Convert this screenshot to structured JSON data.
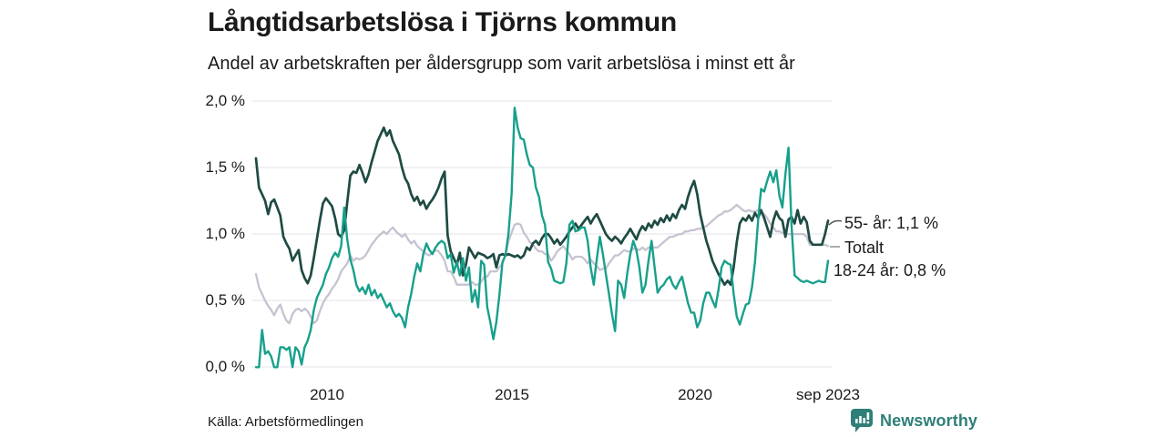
{
  "header": {
    "title": "Långtidsarbetslösa i Tjörns kommun",
    "subtitle": "Andel av arbetskraften per åldersgrupp som varit arbetslösa i minst ett år"
  },
  "footer": {
    "source": "Källa: Arbetsförmedlingen",
    "logo_text": "Newsworthy"
  },
  "colors": {
    "series_55": "#1e4b43",
    "series_total": "#c6c3d1",
    "series_18_24": "#17a08b",
    "grid": "#e3e2e8",
    "logo": "#2f7f78",
    "text": "#1a1a1a"
  },
  "chart_data": {
    "type": "line",
    "title": "Långtidsarbetslösa i Tjörns kommun",
    "subtitle": "Andel av arbetskraften per åldersgrupp som varit arbetslösa i minst ett år",
    "source": "Källa: Arbetsförmedlingen",
    "unit": "% av arbetskraften",
    "x_unit": "month",
    "x_start": "2008-01",
    "x_end": "2023-09",
    "ylim": [
      0,
      2
    ],
    "grid": "horizontal",
    "legend_position": "right-of-line-ends",
    "y_ticks": [
      "0,0 %",
      "0,5 %",
      "1,0 %",
      "1,5 %",
      "2,0 %"
    ],
    "x_ticks": [
      {
        "label": "2010",
        "x": "2010-01"
      },
      {
        "label": "2015",
        "x": "2015-01"
      },
      {
        "label": "2020",
        "x": "2020-01"
      },
      {
        "label": "sep 2023",
        "x": "2023-09"
      }
    ],
    "series": [
      {
        "name": "Totalt",
        "legend": "Totalt",
        "color": "#c6c3d1",
        "values": [
          0.7,
          0.6,
          0.55,
          0.5,
          0.46,
          0.43,
          0.39,
          0.44,
          0.47,
          0.4,
          0.35,
          0.33,
          0.4,
          0.43,
          0.44,
          0.42,
          0.44,
          0.42,
          0.38,
          0.33,
          0.35,
          0.42,
          0.48,
          0.52,
          0.55,
          0.59,
          0.62,
          0.66,
          0.72,
          0.75,
          0.78,
          0.84,
          0.8,
          0.82,
          0.81,
          0.82,
          0.84,
          0.88,
          0.92,
          0.95,
          0.98,
          1.0,
          1.02,
          1.0,
          1.03,
          1.05,
          1.02,
          1.0,
          0.98,
          1.0,
          0.96,
          0.93,
          0.95,
          0.91,
          0.89,
          0.87,
          0.85,
          0.84,
          0.86,
          0.88,
          0.87,
          0.84,
          0.8,
          0.72,
          0.72,
          0.68,
          0.62,
          0.62,
          0.62,
          0.62,
          0.62,
          0.64,
          0.62,
          0.62,
          0.64,
          0.68,
          0.68,
          0.72,
          0.72,
          0.72,
          0.75,
          0.78,
          0.84,
          0.95,
          1.01,
          1.07,
          1.08,
          1.07,
          1.01,
          0.98,
          0.94,
          0.92,
          0.89,
          0.87,
          0.87,
          0.85,
          0.85,
          0.8,
          0.83,
          0.87,
          0.89,
          0.91,
          0.88,
          0.85,
          0.81,
          0.83,
          0.83,
          0.83,
          0.81,
          0.78,
          0.81,
          0.78,
          0.76,
          0.73,
          0.74,
          0.74,
          0.78,
          0.81,
          0.84,
          0.84,
          0.86,
          0.88,
          0.87,
          0.87,
          0.89,
          0.89,
          0.88,
          0.9,
          0.88,
          0.9,
          0.9,
          0.9,
          0.9,
          0.92,
          0.94,
          0.96,
          0.98,
          0.98,
          0.99,
          1.0,
          1.0,
          1.02,
          1.02,
          1.03,
          1.03,
          1.04,
          1.04,
          1.05,
          1.06,
          1.08,
          1.1,
          1.12,
          1.14,
          1.15,
          1.17,
          1.17,
          1.18,
          1.2,
          1.22,
          1.2,
          1.18,
          1.17,
          1.18,
          1.17,
          1.17,
          1.18,
          1.17,
          1.15,
          1.12,
          1.08,
          1.05,
          1.02,
          1.02,
          1.01,
          1.0,
          1.0,
          1.0,
          1.0,
          1.0,
          1.0,
          1.0,
          0.98,
          0.92,
          0.92,
          0.92,
          0.92,
          0.92,
          0.92,
          0.91
        ]
      },
      {
        "name": "55- år",
        "legend": "55- år: 1,1 %",
        "last_value": 1.1,
        "color": "#1e4b43",
        "values": [
          1.57,
          1.35,
          1.3,
          1.25,
          1.15,
          1.24,
          1.26,
          1.2,
          1.14,
          0.98,
          0.93,
          0.89,
          0.8,
          0.84,
          0.88,
          0.73,
          0.67,
          0.63,
          0.69,
          0.82,
          0.96,
          1.1,
          1.23,
          1.27,
          1.24,
          1.21,
          1.12,
          1.0,
          0.98,
          1.03,
          1.24,
          1.44,
          1.47,
          1.46,
          1.52,
          1.46,
          1.39,
          1.45,
          1.54,
          1.62,
          1.7,
          1.75,
          1.8,
          1.74,
          1.78,
          1.7,
          1.65,
          1.6,
          1.5,
          1.42,
          1.38,
          1.3,
          1.25,
          1.28,
          1.22,
          1.25,
          1.19,
          1.23,
          1.26,
          1.3,
          1.35,
          1.42,
          1.47,
          0.99,
          0.87,
          0.82,
          0.77,
          0.86,
          0.69,
          0.77,
          0.9,
          0.86,
          0.82,
          0.86,
          0.85,
          0.84,
          0.82,
          0.83,
          0.85,
          0.75,
          0.84,
          0.85,
          0.84,
          0.85,
          0.84,
          0.83,
          0.84,
          0.82,
          0.84,
          0.9,
          0.88,
          0.93,
          0.95,
          0.92,
          0.97,
          1.0,
          1.0,
          0.97,
          0.93,
          0.96,
          0.92,
          0.95,
          0.98,
          1.02,
          1.05,
          1.08,
          1.04,
          1.07,
          1.1,
          1.13,
          1.08,
          1.12,
          1.15,
          1.1,
          1.05,
          1.0,
          0.97,
          0.95,
          0.98,
          0.96,
          0.93,
          0.97,
          1.0,
          1.04,
          1.0,
          0.96,
          1.02,
          1.06,
          1.03,
          1.08,
          1.05,
          1.1,
          1.07,
          1.12,
          1.09,
          1.14,
          1.1,
          1.15,
          1.12,
          1.18,
          1.22,
          1.19,
          1.28,
          1.35,
          1.4,
          1.3,
          1.15,
          1.05,
          0.95,
          0.88,
          0.8,
          0.75,
          0.7,
          0.66,
          0.62,
          0.65,
          0.62,
          0.75,
          0.94,
          1.08,
          1.12,
          1.1,
          1.14,
          1.1,
          1.16,
          1.12,
          1.18,
          1.12,
          1.05,
          0.98,
          1.1,
          1.17,
          1.12,
          1.1,
          0.98,
          1.11,
          1.13,
          1.08,
          1.18,
          1.08,
          1.13,
          1.09,
          0.95,
          0.92,
          0.92,
          0.92,
          0.92,
          1.0,
          1.1
        ]
      },
      {
        "name": "18-24 år",
        "legend": "18-24 år: 0,8 %",
        "last_value": 0.8,
        "color": "#17a08b",
        "values": [
          0.0,
          0.0,
          0.28,
          0.1,
          0.12,
          0.08,
          0.0,
          0.0,
          0.15,
          0.15,
          0.13,
          0.15,
          0.0,
          0.15,
          0.12,
          0.02,
          0.15,
          0.2,
          0.28,
          0.43,
          0.52,
          0.57,
          0.62,
          0.7,
          0.75,
          0.82,
          0.86,
          0.83,
          0.91,
          1.2,
          0.96,
          0.81,
          0.73,
          0.62,
          0.57,
          0.6,
          0.55,
          0.62,
          0.54,
          0.58,
          0.52,
          0.55,
          0.5,
          0.45,
          0.48,
          0.42,
          0.38,
          0.4,
          0.37,
          0.3,
          0.45,
          0.55,
          0.68,
          0.78,
          0.72,
          0.85,
          0.93,
          0.88,
          0.85,
          0.9,
          0.93,
          0.95,
          0.93,
          0.82,
          0.85,
          0.71,
          0.79,
          0.69,
          0.82,
          0.65,
          0.75,
          0.49,
          0.58,
          0.45,
          0.8,
          0.77,
          0.45,
          0.34,
          0.21,
          0.34,
          0.54,
          0.79,
          0.84,
          1.01,
          1.3,
          1.95,
          1.8,
          1.72,
          1.71,
          1.6,
          1.52,
          1.5,
          1.35,
          1.28,
          1.14,
          1.07,
          0.79,
          0.74,
          0.65,
          0.64,
          0.63,
          0.64,
          0.78,
          1.07,
          1.1,
          1.02,
          1.03,
          1.05,
          1.05,
          0.95,
          0.75,
          0.62,
          0.81,
          0.98,
          0.85,
          0.7,
          0.55,
          0.4,
          0.27,
          0.65,
          0.62,
          0.52,
          0.7,
          0.85,
          0.95,
          0.88,
          0.75,
          0.56,
          0.62,
          0.8,
          0.95,
          0.75,
          0.56,
          0.6,
          0.62,
          0.66,
          0.68,
          0.62,
          0.59,
          0.64,
          0.68,
          0.58,
          0.48,
          0.41,
          0.41,
          0.3,
          0.35,
          0.48,
          0.56,
          0.56,
          0.5,
          0.45,
          0.58,
          0.75,
          0.8,
          0.78,
          0.77,
          0.55,
          0.38,
          0.32,
          0.4,
          0.47,
          0.48,
          0.6,
          0.79,
          1.1,
          1.34,
          1.32,
          1.4,
          1.47,
          1.39,
          1.48,
          1.29,
          1.2,
          1.45,
          1.65,
          1.07,
          0.69,
          0.67,
          0.65,
          0.64,
          0.65,
          0.64,
          0.63,
          0.64,
          0.65,
          0.64,
          0.64,
          0.8
        ]
      }
    ]
  }
}
